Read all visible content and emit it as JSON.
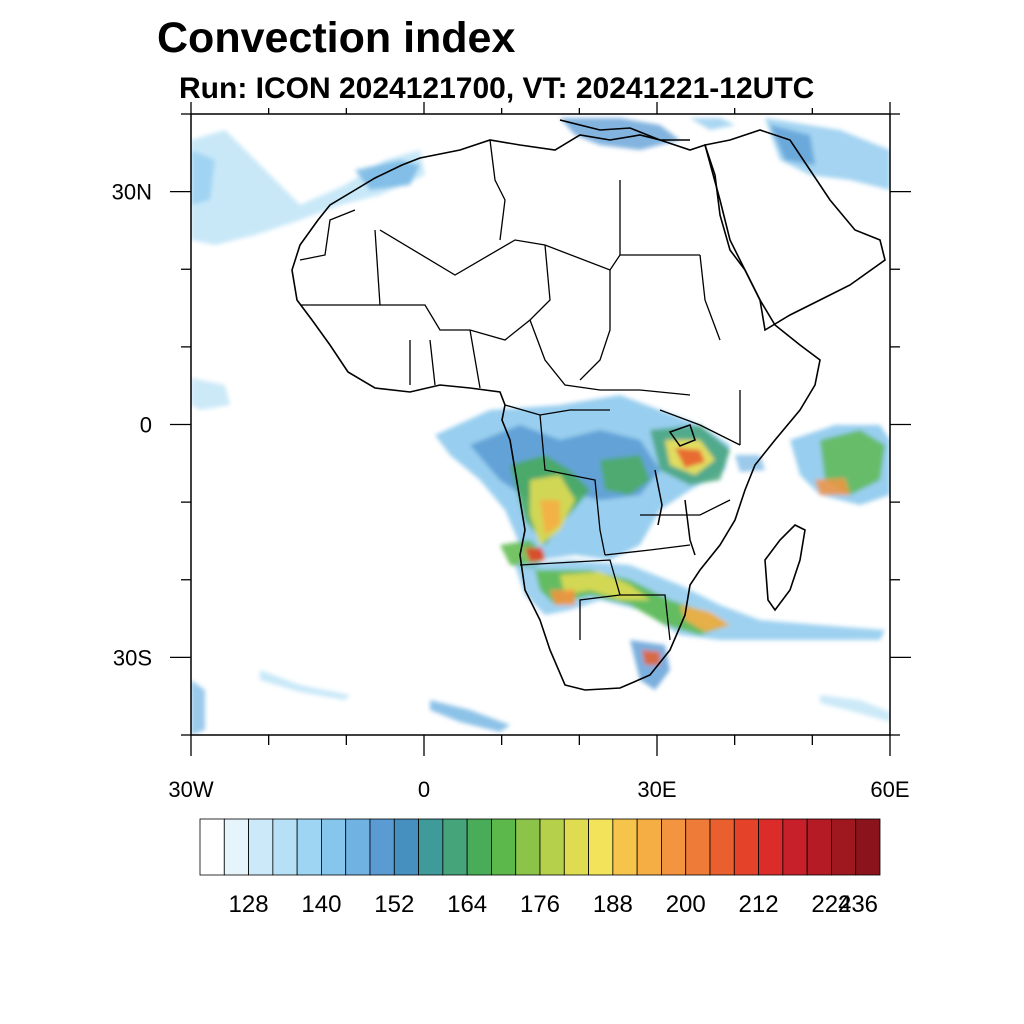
{
  "title": "Convection index",
  "subtitle": "Run: ICON 2024121700,  VT: 20241221-12UTC",
  "map": {
    "lon_range": [
      -30,
      60
    ],
    "lat_range": [
      -40,
      40
    ],
    "lon_ticks": [
      {
        "value": -30,
        "label": "30W"
      },
      {
        "value": 0,
        "label": "0"
      },
      {
        "value": 30,
        "label": "30E"
      },
      {
        "value": 60,
        "label": "60E"
      }
    ],
    "lat_ticks": [
      {
        "value": 30,
        "label": "30N"
      },
      {
        "value": 0,
        "label": "0"
      },
      {
        "value": -30,
        "label": "30S"
      }
    ],
    "minor_lon_step": 10,
    "minor_lat_step": 10
  },
  "colorbar": {
    "colors": [
      "#ffffff",
      "#e6f4fc",
      "#cbe9f8",
      "#b6e0f5",
      "#9dd5f2",
      "#86c6ec",
      "#70b3e2",
      "#5a9bd4",
      "#4690bf",
      "#3f9a9a",
      "#45a47a",
      "#49ac58",
      "#5cb84a",
      "#8cc349",
      "#b5d04b",
      "#dfdc52",
      "#f2e35a",
      "#f7c44b",
      "#f5ae44",
      "#f39440",
      "#ef7b38",
      "#e95f2e",
      "#e4432a",
      "#dc2c2a",
      "#c8202a",
      "#b51b24",
      "#9f1820",
      "#8b141c"
    ],
    "labels": [
      {
        "index": 2,
        "label": "128"
      },
      {
        "index": 5,
        "label": "140"
      },
      {
        "index": 8,
        "label": "152"
      },
      {
        "index": 11,
        "label": "164"
      },
      {
        "index": 14,
        "label": "176"
      },
      {
        "index": 17,
        "label": "188"
      },
      {
        "index": 20,
        "label": "200"
      },
      {
        "index": 23,
        "label": "212"
      },
      {
        "index": 26,
        "label": "224"
      },
      {
        "index": 29,
        "label": "236"
      }
    ]
  }
}
